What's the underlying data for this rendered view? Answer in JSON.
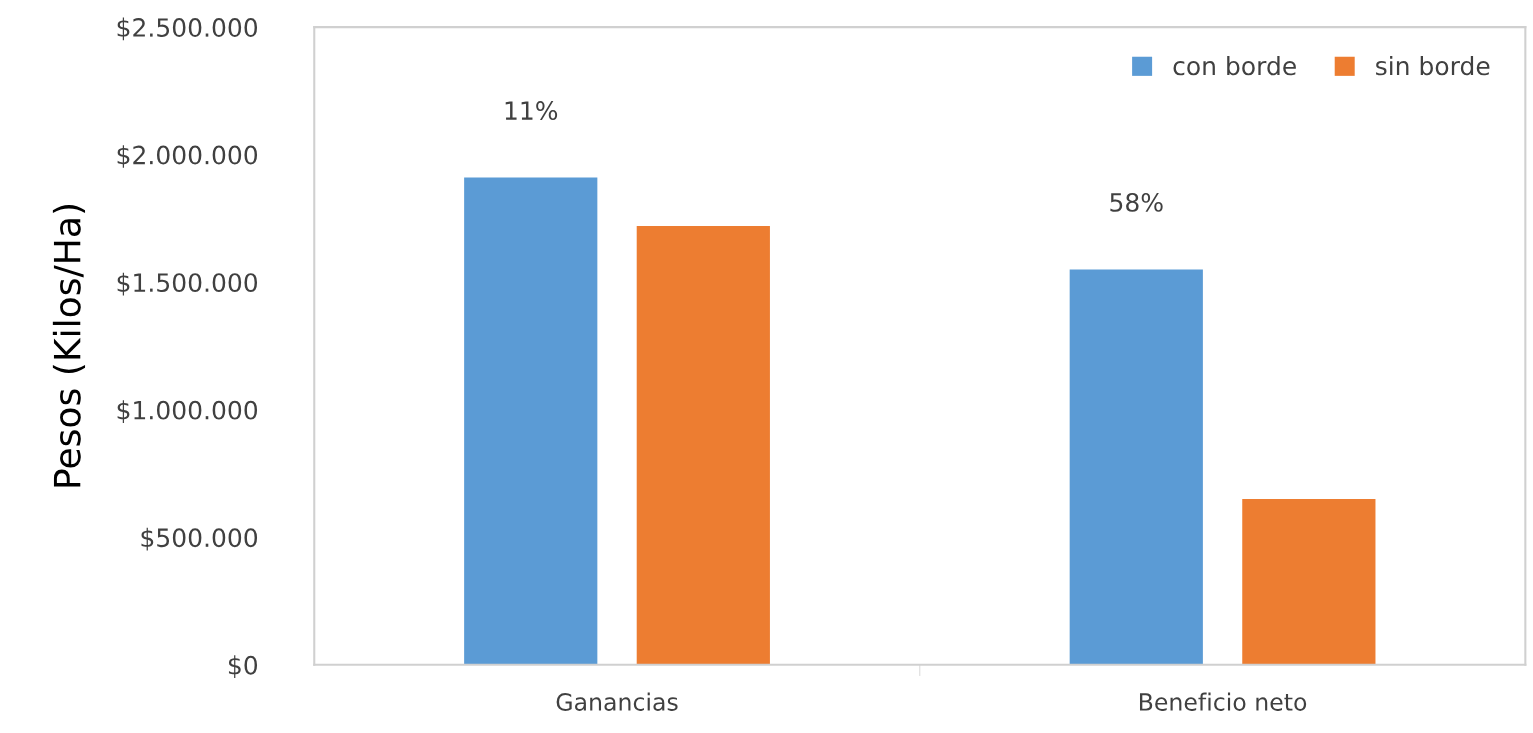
{
  "chart_data": {
    "type": "bar",
    "categories": [
      "Ganancias",
      "Beneficio neto"
    ],
    "ylabel": "Pesos (Kilos/Ha)",
    "series": [
      {
        "name": "con borde",
        "color": "#5b9bd5",
        "values": [
          1910000,
          1550000
        ]
      },
      {
        "name": "sin borde",
        "color": "#ed7d31",
        "values": [
          1720000,
          650000
        ]
      }
    ],
    "ylim": [
      0,
      2500000
    ],
    "yticks": [
      {
        "value": 0,
        "label": "$0"
      },
      {
        "value": 500000,
        "label": "$500.000"
      },
      {
        "value": 1000000,
        "label": "$1.000.000"
      },
      {
        "value": 1500000,
        "label": "$1.500.000"
      },
      {
        "value": 2000000,
        "label": "$2.000.000"
      },
      {
        "value": 2500000,
        "label": "$2.500.000"
      }
    ],
    "annotations": [
      "11%",
      "58%"
    ],
    "grid": false,
    "legend": "top right"
  }
}
